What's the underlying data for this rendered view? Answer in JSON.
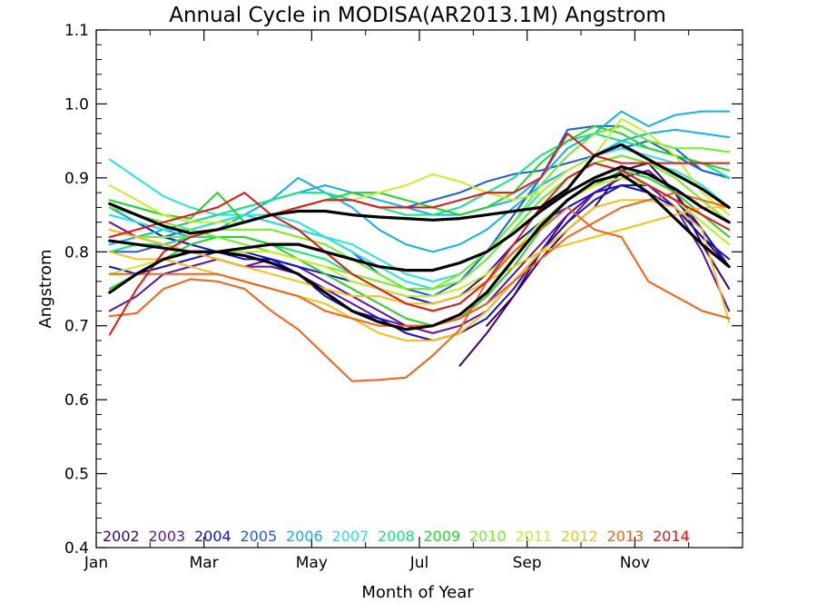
{
  "chart_data": {
    "type": "line",
    "title": "Annual Cycle in MODISA(AR2013.1M) Angstrom",
    "xlabel": "Month of Year",
    "ylabel": "Angstrom",
    "xlim": [
      0,
      12
    ],
    "ylim": [
      0.4,
      1.1
    ],
    "x_ticks": [
      0,
      2,
      4,
      6,
      8,
      10
    ],
    "x_tick_labels": [
      "Jan",
      "Mar",
      "May",
      "Jul",
      "Sep",
      "Nov"
    ],
    "y_ticks": [
      0.4,
      0.5,
      0.6,
      0.7,
      0.8,
      0.9,
      1.0,
      1.1
    ],
    "y_tick_labels": [
      "0.4",
      "0.5",
      "0.6",
      "0.7",
      "0.8",
      "0.9",
      "1.0",
      "1.1"
    ],
    "grid": false,
    "legend_placement": "bottom-left",
    "months": [
      0.25,
      0.75,
      1.25,
      1.75,
      2.25,
      2.75,
      3.25,
      3.75,
      4.25,
      4.75,
      5.25,
      5.75,
      6.25,
      6.75,
      7.25,
      7.75,
      8.25,
      8.75,
      9.25,
      9.75,
      10.25,
      10.75,
      11.25,
      11.75
    ],
    "series": [
      {
        "name": "2002",
        "color": "#3a0070",
        "values": [
          null,
          null,
          null,
          null,
          null,
          null,
          null,
          null,
          null,
          null,
          null,
          null,
          null,
          0.646,
          0.69,
          0.74,
          0.79,
          0.83,
          0.86,
          0.91,
          0.92,
          0.88,
          0.81,
          0.75
        ]
      },
      {
        "name": "2002",
        "color": "#3a0070",
        "values": [
          null,
          null,
          null,
          null,
          null,
          null,
          null,
          null,
          null,
          null,
          null,
          null,
          null,
          null,
          0.7,
          0.74,
          0.8,
          0.85,
          0.88,
          0.9,
          0.89,
          0.86,
          0.82,
          0.78
        ]
      },
      {
        "name": "2003",
        "color": "#5a10b0",
        "values": [
          0.72,
          0.74,
          0.77,
          0.78,
          0.79,
          0.78,
          0.79,
          0.78,
          0.76,
          0.74,
          0.72,
          0.7,
          0.69,
          0.7,
          0.72,
          0.76,
          0.8,
          0.84,
          0.88,
          0.9,
          0.89,
          0.86,
          0.8,
          0.72
        ]
      },
      {
        "name": "2003",
        "color": "#5a10b0",
        "values": [
          0.84,
          0.82,
          0.81,
          0.8,
          0.79,
          0.78,
          0.78,
          0.77,
          0.75,
          0.73,
          0.71,
          0.7,
          0.7,
          0.71,
          0.73,
          0.77,
          0.81,
          0.85,
          0.88,
          0.9,
          0.91,
          0.88,
          0.83,
          0.78
        ]
      },
      {
        "name": "2004",
        "color": "#1010d0",
        "values": [
          0.78,
          0.77,
          0.78,
          0.79,
          0.8,
          0.8,
          0.79,
          0.77,
          0.74,
          0.72,
          0.71,
          0.69,
          0.68,
          0.69,
          0.71,
          0.75,
          0.8,
          0.84,
          0.87,
          0.89,
          0.89,
          0.87,
          0.83,
          0.78
        ]
      },
      {
        "name": "2004",
        "color": "#1010d0",
        "values": [
          0.86,
          0.84,
          0.82,
          0.81,
          0.8,
          0.79,
          0.79,
          0.78,
          0.77,
          0.76,
          0.75,
          0.74,
          0.73,
          0.74,
          0.77,
          0.81,
          0.84,
          0.86,
          0.88,
          0.89,
          0.88,
          0.86,
          0.82,
          0.79
        ]
      },
      {
        "name": "2005",
        "color": "#1a5af0",
        "values": [
          0.83,
          0.82,
          0.82,
          0.83,
          0.84,
          0.85,
          0.84,
          0.83,
          0.82,
          0.8,
          0.77,
          0.75,
          0.74,
          0.76,
          0.8,
          0.85,
          0.9,
          0.965,
          0.97,
          0.97,
          0.95,
          0.94,
          0.91,
          0.9
        ]
      },
      {
        "name": "2005",
        "color": "#1a5af0",
        "values": [
          0.8,
          0.8,
          0.81,
          0.82,
          0.83,
          0.84,
          0.85,
          0.86,
          0.87,
          0.87,
          0.86,
          0.86,
          0.87,
          0.88,
          0.895,
          0.905,
          0.91,
          0.92,
          0.93,
          0.94,
          0.95,
          0.93,
          0.91,
          0.9
        ]
      },
      {
        "name": "2006",
        "color": "#10b0f0",
        "values": [
          0.81,
          0.82,
          0.83,
          0.84,
          0.85,
          0.86,
          0.87,
          0.88,
          0.89,
          0.88,
          0.87,
          0.86,
          0.85,
          0.85,
          0.86,
          0.87,
          0.9,
          0.94,
          0.96,
          0.99,
          0.97,
          0.985,
          0.99,
          0.99
        ]
      },
      {
        "name": "2006",
        "color": "#10b0f0",
        "values": [
          0.86,
          0.84,
          0.83,
          0.82,
          0.83,
          0.85,
          0.87,
          0.9,
          0.88,
          0.86,
          0.83,
          0.81,
          0.8,
          0.81,
          0.83,
          0.86,
          0.89,
          0.91,
          0.93,
          0.95,
          0.96,
          0.965,
          0.96,
          0.955
        ]
      },
      {
        "name": "2007",
        "color": "#20e8d8",
        "values": [
          0.925,
          0.9,
          0.875,
          0.86,
          0.85,
          0.85,
          0.84,
          0.83,
          0.82,
          0.81,
          0.79,
          0.77,
          0.76,
          0.77,
          0.8,
          0.84,
          0.88,
          0.91,
          0.93,
          0.94,
          0.93,
          0.92,
          0.92,
          0.9
        ]
      },
      {
        "name": "2007",
        "color": "#20e8d8",
        "values": [
          0.85,
          0.84,
          0.83,
          0.83,
          0.84,
          0.85,
          0.85,
          0.84,
          0.82,
          0.8,
          0.78,
          0.76,
          0.75,
          0.76,
          0.79,
          0.83,
          0.87,
          0.9,
          0.92,
          0.93,
          0.92,
          0.91,
          0.89,
          0.86
        ]
      },
      {
        "name": "2008",
        "color": "#10e880",
        "values": [
          0.87,
          0.86,
          0.85,
          0.84,
          0.85,
          0.86,
          0.87,
          0.88,
          0.88,
          0.87,
          0.86,
          0.85,
          0.85,
          0.86,
          0.88,
          0.9,
          0.93,
          0.95,
          0.96,
          0.95,
          0.94,
          0.93,
          0.92,
          0.9
        ]
      },
      {
        "name": "2008",
        "color": "#10e880",
        "values": [
          0.8,
          0.81,
          0.81,
          0.82,
          0.82,
          0.82,
          0.81,
          0.8,
          0.79,
          0.77,
          0.75,
          0.73,
          0.72,
          0.73,
          0.76,
          0.8,
          0.84,
          0.87,
          0.89,
          0.9,
          0.89,
          0.87,
          0.84,
          0.81
        ]
      },
      {
        "name": "2009",
        "color": "#20d820",
        "values": [
          0.87,
          0.86,
          0.85,
          0.845,
          0.88,
          0.84,
          0.85,
          0.86,
          0.87,
          0.88,
          0.88,
          0.87,
          0.86,
          0.85,
          0.86,
          0.88,
          0.92,
          0.95,
          0.97,
          0.96,
          0.94,
          0.93,
          0.92,
          0.91
        ]
      },
      {
        "name": "2009",
        "color": "#20d820",
        "values": [
          0.75,
          0.77,
          0.79,
          0.81,
          0.82,
          0.82,
          0.81,
          0.79,
          0.77,
          0.75,
          0.73,
          0.71,
          0.7,
          0.71,
          0.74,
          0.78,
          0.83,
          0.87,
          0.89,
          0.91,
          0.9,
          0.88,
          0.85,
          0.82
        ]
      },
      {
        "name": "2010",
        "color": "#70f020",
        "values": [
          0.83,
          0.82,
          0.82,
          0.82,
          0.83,
          0.83,
          0.83,
          0.82,
          0.81,
          0.79,
          0.77,
          0.75,
          0.75,
          0.77,
          0.8,
          0.84,
          0.89,
          0.93,
          0.96,
          0.97,
          0.95,
          0.94,
          0.94,
          0.935
        ]
      },
      {
        "name": "2010",
        "color": "#70f020",
        "values": [
          0.86,
          0.85,
          0.84,
          0.83,
          0.82,
          0.81,
          0.8,
          0.79,
          0.78,
          0.77,
          0.76,
          0.75,
          0.75,
          0.76,
          0.79,
          0.83,
          0.87,
          0.9,
          0.92,
          0.93,
          0.92,
          0.9,
          0.87,
          0.84
        ]
      },
      {
        "name": "2011",
        "color": "#c8f020",
        "values": [
          0.89,
          0.87,
          0.85,
          0.84,
          0.84,
          0.84,
          0.85,
          0.86,
          0.87,
          0.87,
          0.88,
          0.89,
          0.905,
          0.895,
          0.88,
          0.87,
          0.88,
          0.91,
          0.93,
          0.98,
          0.96,
          0.93,
          0.88,
          0.85
        ]
      },
      {
        "name": "2011",
        "color": "#c8f020",
        "values": [
          0.77,
          0.78,
          0.79,
          0.8,
          0.8,
          0.8,
          0.8,
          0.79,
          0.78,
          0.76,
          0.75,
          0.74,
          0.74,
          0.75,
          0.77,
          0.8,
          0.84,
          0.87,
          0.89,
          0.9,
          0.89,
          0.87,
          0.84,
          0.81
        ]
      },
      {
        "name": "2012",
        "color": "#f8c010",
        "values": [
          0.8,
          0.79,
          0.79,
          0.78,
          0.77,
          0.76,
          0.75,
          0.74,
          0.73,
          0.71,
          0.69,
          0.68,
          0.68,
          0.69,
          0.72,
          0.76,
          0.8,
          0.83,
          0.86,
          0.87,
          0.87,
          0.86,
          0.83,
          0.705
        ]
      },
      {
        "name": "2012",
        "color": "#f8c010",
        "values": [
          0.83,
          0.82,
          0.81,
          0.8,
          0.79,
          0.78,
          0.77,
          0.76,
          0.75,
          0.74,
          0.74,
          0.73,
          0.73,
          0.74,
          0.76,
          0.78,
          0.8,
          0.81,
          0.82,
          0.83,
          0.84,
          0.85,
          0.86,
          0.86
        ]
      },
      {
        "name": "2013",
        "color": "#f86010",
        "values": [
          0.713,
          0.717,
          0.75,
          0.763,
          0.76,
          0.75,
          0.72,
          0.695,
          0.66,
          0.625,
          0.627,
          0.63,
          0.66,
          0.695,
          0.76,
          0.8,
          0.83,
          0.86,
          0.83,
          0.82,
          0.76,
          0.74,
          0.72,
          0.71
        ]
      },
      {
        "name": "2013",
        "color": "#f86010",
        "values": [
          0.77,
          0.77,
          0.77,
          0.77,
          0.77,
          0.76,
          0.75,
          0.74,
          0.72,
          0.71,
          0.7,
          0.7,
          0.7,
          0.71,
          0.73,
          0.76,
          0.79,
          0.82,
          0.84,
          0.86,
          0.87,
          0.88,
          0.87,
          0.86
        ]
      },
      {
        "name": "2014",
        "color": "#f01010",
        "values": [
          0.688,
          0.75,
          0.8,
          0.82,
          0.83,
          0.84,
          0.85,
          0.86,
          0.87,
          0.87,
          0.86,
          0.86,
          0.86,
          0.87,
          0.88,
          0.88,
          0.9,
          0.96,
          0.93,
          0.92,
          0.92,
          0.92,
          0.92,
          0.92
        ]
      },
      {
        "name": "2014",
        "color": "#f01010",
        "values": [
          0.82,
          0.83,
          0.84,
          0.85,
          0.86,
          0.88,
          0.85,
          0.83,
          0.8,
          0.77,
          0.75,
          0.73,
          0.72,
          0.73,
          0.76,
          0.81,
          0.86,
          0.9,
          0.92,
          0.91,
          0.89,
          0.87,
          0.85,
          0.83
        ]
      }
    ],
    "mean_series": [
      {
        "color": "#000000",
        "values": [
          0.865,
          0.85,
          0.835,
          0.825,
          0.83,
          0.84,
          0.85,
          0.855,
          0.855,
          0.85,
          0.847,
          0.845,
          0.843,
          0.845,
          0.85,
          0.855,
          0.86,
          0.885,
          0.93,
          0.945,
          0.925,
          0.905,
          0.885,
          0.86
        ]
      },
      {
        "color": "#000000",
        "values": [
          0.815,
          0.81,
          0.805,
          0.8,
          0.8,
          0.805,
          0.81,
          0.81,
          0.8,
          0.79,
          0.78,
          0.775,
          0.775,
          0.785,
          0.8,
          0.825,
          0.855,
          0.88,
          0.9,
          0.915,
          0.905,
          0.885,
          0.86,
          0.84
        ]
      },
      {
        "color": "#000000",
        "values": [
          0.745,
          0.77,
          0.79,
          0.8,
          0.8,
          0.795,
          0.785,
          0.77,
          0.745,
          0.72,
          0.705,
          0.695,
          0.7,
          0.715,
          0.745,
          0.79,
          0.835,
          0.87,
          0.895,
          0.905,
          0.88,
          0.845,
          0.81,
          0.78
        ]
      }
    ],
    "legend": [
      {
        "label": "2002",
        "color": "#3a0070"
      },
      {
        "label": "2003",
        "color": "#5a10b0"
      },
      {
        "label": "2004",
        "color": "#1010d0"
      },
      {
        "label": "2005",
        "color": "#1a5af0"
      },
      {
        "label": "2006",
        "color": "#10b0f0"
      },
      {
        "label": "2007",
        "color": "#20e8d8"
      },
      {
        "label": "2008",
        "color": "#10e880"
      },
      {
        "label": "2009",
        "color": "#20d820"
      },
      {
        "label": "2010",
        "color": "#70f020"
      },
      {
        "label": "2011",
        "color": "#c8f020"
      },
      {
        "label": "2012",
        "color": "#f8c010"
      },
      {
        "label": "2013",
        "color": "#f86010"
      },
      {
        "label": "2014",
        "color": "#f01010"
      }
    ]
  }
}
